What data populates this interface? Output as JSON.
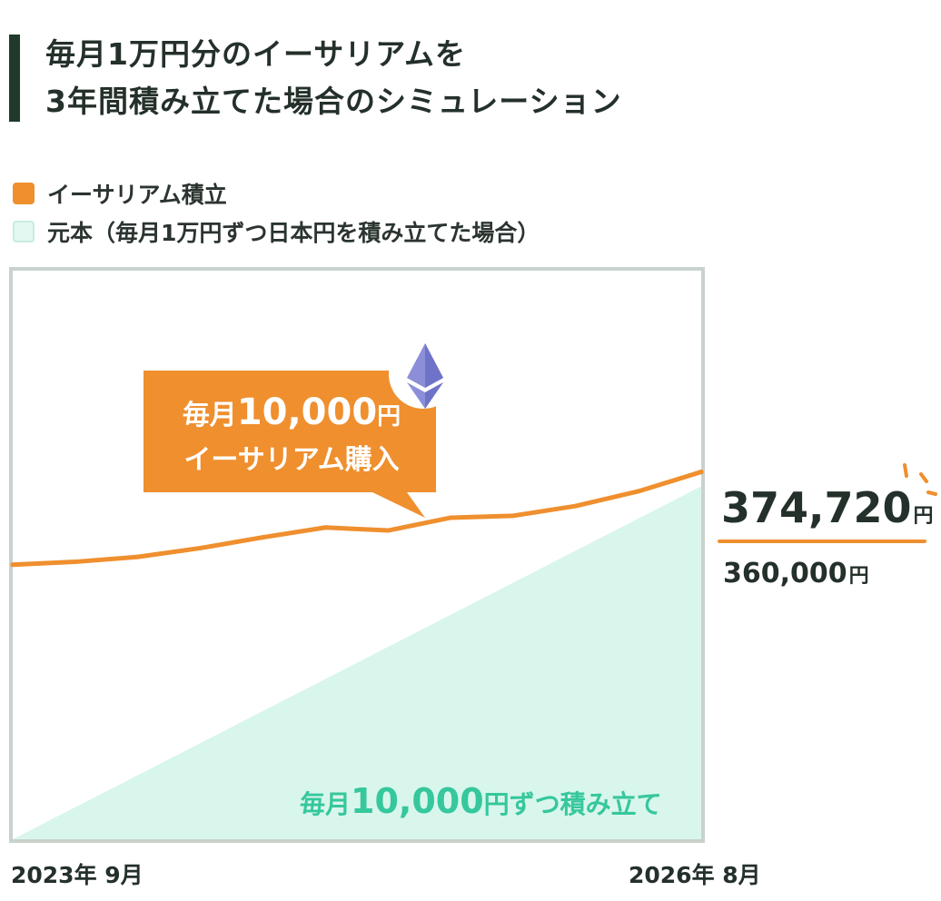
{
  "title_line1": "毎月1万円分のイーサリアムを",
  "title_line2": "3年間積み立てた場合のシミュレーション",
  "colors": {
    "eth": "#ef8f2e",
    "principal_fill": "#d9f6ec",
    "principal_text": "#36c79d",
    "frame": "#c9d2cc",
    "dark": "#24302a"
  },
  "icons": {
    "eth_logo": "ethereum-icon"
  },
  "callout": {
    "prefix": "毎月",
    "amount": "10,000",
    "unit": "円",
    "line2": "イーサリアム購入"
  },
  "principal_note": {
    "prefix": "毎月",
    "amount": "10,000",
    "suffix": "円ずつ積み立て"
  },
  "final_values": {
    "eth_number": "374,720",
    "eth_unit": "円",
    "principal_number": "360,000",
    "principal_unit": "円"
  },
  "chart_data": {
    "type": "line",
    "x_start_label": "2023年 9月",
    "x_end_label": "2026年 8月",
    "series": [
      {
        "name": "イーサリアム積立",
        "type": "line",
        "values": [
          280000,
          283000,
          288000,
          297000,
          308000,
          318000,
          315000,
          328000,
          330000,
          340000,
          355000,
          374720
        ]
      },
      {
        "name": "元本（毎月1万円ずつ日本円を積み立てた場合）",
        "type": "area",
        "values": [
          0,
          360000
        ]
      }
    ],
    "ylim": [
      0,
      580000
    ],
    "grid": false,
    "legend": "top-left"
  }
}
